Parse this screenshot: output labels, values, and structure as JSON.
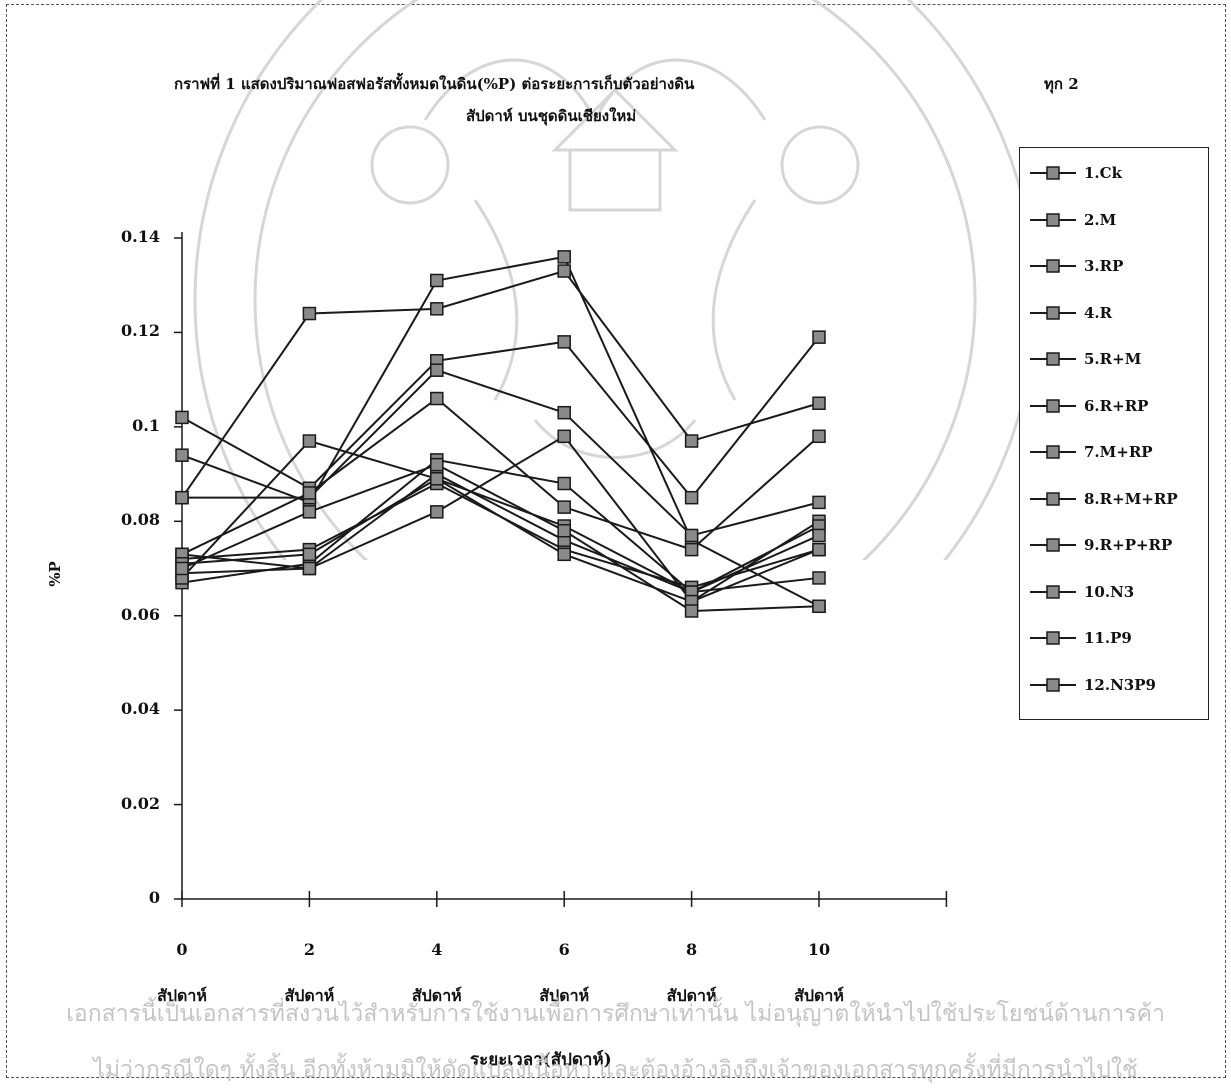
{
  "chart_data": {
    "type": "line",
    "title_line1": "กราฟที่ 1 แสดงปริมาณฟอสฟอรัสทั้งหมดในดิน(%P) ต่อระยะการเก็บตัวอย่างดิน",
    "title_line1_tail": "ทุก 2",
    "title_line2": "สัปดาห์ บนชุดดินเชียงใหม่",
    "xlabel": "ระยะเวลา(สัปดาห์)",
    "ylabel": "%P",
    "x_unit_label": "สัปดาห์",
    "x": [
      0,
      2,
      4,
      6,
      8,
      10
    ],
    "x_tick_labels": [
      "0",
      "2",
      "4",
      "6",
      "8",
      "10"
    ],
    "ylim": [
      0,
      0.14
    ],
    "y_ticks": [
      0,
      0.02,
      0.04,
      0.06,
      0.08,
      0.1,
      0.12,
      0.14
    ],
    "y_tick_labels": [
      "0",
      "0.02",
      "0.04",
      "0.06",
      "0.08",
      "0.1",
      "0.12",
      "0.14"
    ],
    "grid": false,
    "legend_position": "right",
    "series": [
      {
        "name": "1.Ck",
        "values": [
          0.072,
          0.074,
          0.088,
          0.074,
          0.066,
          0.074
        ]
      },
      {
        "name": "2.M",
        "values": [
          0.067,
          0.071,
          0.093,
          0.088,
          0.065,
          0.068
        ]
      },
      {
        "name": "3.RP",
        "values": [
          0.102,
          0.087,
          0.114,
          0.118,
          0.085,
          0.119
        ]
      },
      {
        "name": "4.R",
        "values": [
          0.073,
          0.07,
          0.082,
          0.098,
          0.063,
          0.08
        ]
      },
      {
        "name": "5.R+M",
        "values": [
          0.094,
          0.084,
          0.131,
          0.136,
          0.076,
          0.062
        ]
      },
      {
        "name": "6.R+RP",
        "values": [
          0.085,
          0.124,
          0.125,
          0.133,
          0.097,
          0.105
        ]
      },
      {
        "name": "7.M+RP",
        "values": [
          0.069,
          0.07,
          0.09,
          0.076,
          0.065,
          0.079
        ]
      },
      {
        "name": "8.R+M+RP",
        "values": [
          0.085,
          0.085,
          0.112,
          0.103,
          0.077,
          0.084
        ]
      },
      {
        "name": "9.R+P+RP",
        "values": [
          0.073,
          0.086,
          0.106,
          0.083,
          0.074,
          0.098
        ]
      },
      {
        "name": "10.N3",
        "values": [
          0.068,
          0.097,
          0.089,
          0.079,
          0.065,
          0.077
        ]
      },
      {
        "name": "11.P9",
        "values": [
          0.071,
          0.073,
          0.089,
          0.073,
          0.063,
          0.074
        ]
      },
      {
        "name": "12.N3P9",
        "values": [
          0.07,
          0.082,
          0.092,
          0.078,
          0.061,
          0.062
        ]
      }
    ]
  },
  "colors": {
    "line": "#1a1a1a",
    "marker_fill": "#8a8a8a",
    "marker_edge": "#1a1a1a",
    "watermark": "#c4c4c4"
  },
  "watermark": {
    "line1": "เอกสารนี้เป็นเอกสารที่สงวนไว้สำหรับการใช้งานเพื่อการศึกษาเท่านั้น ไม่อนุญาตให้นำไปใช้ประโยชน์ด้านการค้า",
    "line2": "ไม่ว่ากรณีใดๆ ทั้งสิ้น อีกทั้งห้ามมิให้ดัดแปลงเนื้อหา และต้องอ้างอิงถึงเจ้าของเอกสารทุกครั้งที่มีการนำไปใช้"
  }
}
